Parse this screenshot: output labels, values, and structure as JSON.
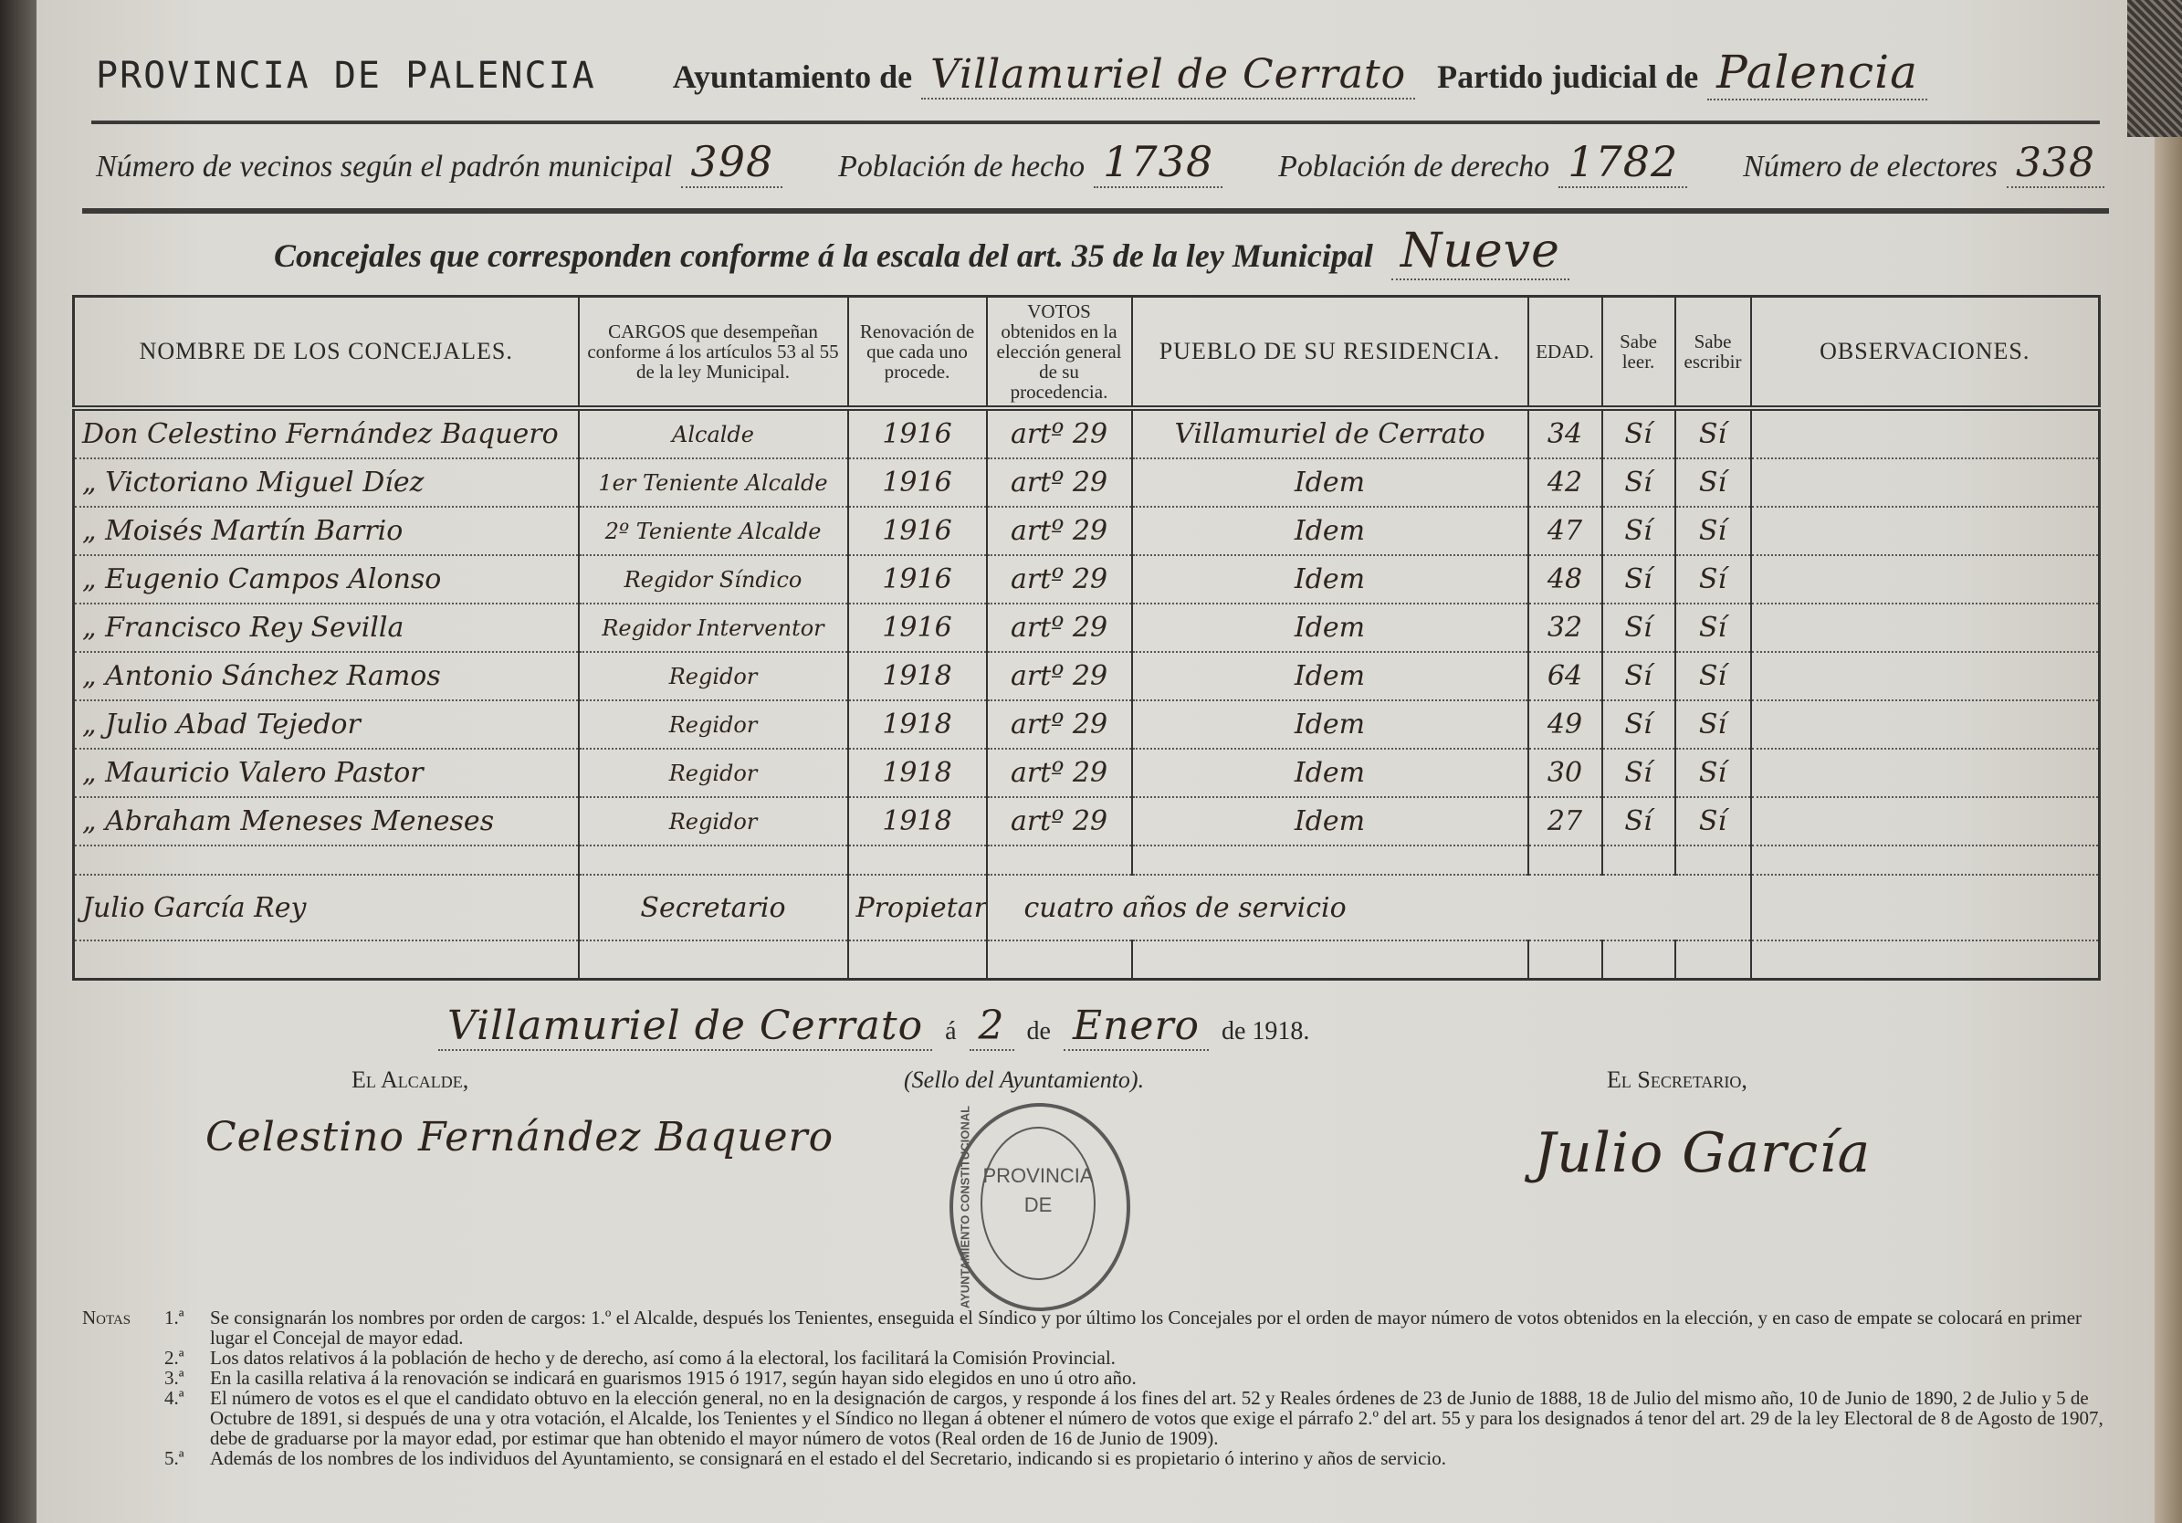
{
  "header": {
    "province": "PROVINCIA DE PALENCIA",
    "ayuntamiento_label": "Ayuntamiento de",
    "ayuntamiento_value": "Villamuriel de Cerrato",
    "partido_label": "Partido judicial de",
    "partido_value": "Palencia"
  },
  "stats": {
    "vecinos_label": "Número de vecinos según el padrón municipal",
    "vecinos_value": "398",
    "hecho_label": "Población de hecho",
    "hecho_value": "1738",
    "derecho_label": "Población de derecho",
    "derecho_value": "1782",
    "electores_label": "Número de electores",
    "electores_value": "338",
    "concejales_label": "Concejales que corresponden conforme á la escala del art. 35 de la ley Municipal",
    "concejales_value": "Nueve"
  },
  "table": {
    "headers": [
      "NOMBRE DE LOS CONCEJALES.",
      "CARGOS que desempeñan conforme á los artículos 53 al 55 de la ley Municipal.",
      "Renovación de que cada uno procede.",
      "VOTOS obtenidos en la elección general de su procedencia.",
      "PUEBLO DE SU RESIDENCIA.",
      "EDAD.",
      "Sabe leer.",
      "Sabe escribir",
      "OBSERVACIONES."
    ],
    "rows": [
      [
        "Don Celestino Fernández Baquero",
        "Alcalde",
        "1916",
        "artº 29",
        "Villamuriel de Cerrato",
        "34",
        "Sí",
        "Sí",
        ""
      ],
      [
        "„ Victoriano Miguel Díez",
        "1er Teniente Alcalde",
        "1916",
        "artº 29",
        "Idem",
        "42",
        "Sí",
        "Sí",
        ""
      ],
      [
        "„ Moisés Martín Barrio",
        "2º Teniente Alcalde",
        "1916",
        "artº 29",
        "Idem",
        "47",
        "Sí",
        "Sí",
        ""
      ],
      [
        "„ Eugenio Campos Alonso",
        "Regidor Síndico",
        "1916",
        "artº 29",
        "Idem",
        "48",
        "Sí",
        "Sí",
        ""
      ],
      [
        "„ Francisco Rey Sevilla",
        "Regidor Interventor",
        "1916",
        "artº 29",
        "Idem",
        "32",
        "Sí",
        "Sí",
        ""
      ],
      [
        "„ Antonio Sánchez Ramos",
        "Regidor",
        "1918",
        "artº 29",
        "Idem",
        "64",
        "Sí",
        "Sí",
        ""
      ],
      [
        "„ Julio Abad Tejedor",
        "Regidor",
        "1918",
        "artº 29",
        "Idem",
        "49",
        "Sí",
        "Sí",
        ""
      ],
      [
        "„ Mauricio Valero Pastor",
        "Regidor",
        "1918",
        "artº 29",
        "Idem",
        "30",
        "Sí",
        "Sí",
        ""
      ],
      [
        "„ Abraham Meneses Meneses",
        "Regidor",
        "1918",
        "artº 29",
        "Idem",
        "27",
        "Sí",
        "Sí",
        ""
      ]
    ],
    "secretary_row": {
      "name": "Julio García Rey",
      "cargo": "Secretario",
      "status": "Propietario",
      "service": "cuatro años de servicio"
    }
  },
  "footer": {
    "place": "Villamuriel de Cerrato",
    "a": "á",
    "day": "2",
    "de1": "de",
    "month": "Enero",
    "year_text": "de 1918.",
    "alcalde_label": "El Alcalde,",
    "alcalde_signature": "Celestino Fernández Baquero",
    "sello_label": "(Sello del Ayuntamiento).",
    "secretario_label": "El Secretario,",
    "secretario_signature": "Julio García",
    "stamp_text": "PROVINCIA DE",
    "stamp_ring": "AYUNTAMIENTO CONSTITUCIONAL"
  },
  "notes": {
    "tag": "Notas",
    "items": [
      {
        "num": "1.ª",
        "text": "Se consignarán los nombres por orden de cargos: 1.º el Alcalde, después los Tenientes, enseguida el Síndico y por último los Concejales por el orden de mayor número de votos obtenidos en la elección, y en caso de empate se colocará en primer lugar el Concejal de mayor edad."
      },
      {
        "num": "2.ª",
        "text": "Los datos relativos á la población de hecho y de derecho, así como á la electoral, los facilitará la Comisión Provincial."
      },
      {
        "num": "3.ª",
        "text": "En la casilla relativa á la renovación se indicará en guarismos 1915 ó 1917, según hayan sido elegidos en uno ú otro año."
      },
      {
        "num": "4.ª",
        "text": "El número de votos es el que el candidato obtuvo en la elección general, no en la designación de cargos, y responde á los fines del art. 52 y Reales órdenes de 23 de Junio de 1888, 18 de Julio del mismo año, 10 de Junio de 1890, 2 de Julio y 5 de Octubre de 1891, si después de una y otra votación, el Alcalde, los Tenientes y el Síndico no llegan á obtener el número de votos que exige el párrafo 2.º del art. 55 y para los designados á tenor del art. 29 de la ley Electoral de 8 de Agosto de 1907, debe de graduarse por la mayor edad, por estimar que han obtenido el mayor número de votos (Real orden de 16 de Junio de 1909)."
      },
      {
        "num": "5.ª",
        "text": "Además de los nombres de los individuos del Ayuntamiento, se consignará en el estado el del Secretario, indicando si es propietario ó interino y años de servicio."
      }
    ]
  }
}
